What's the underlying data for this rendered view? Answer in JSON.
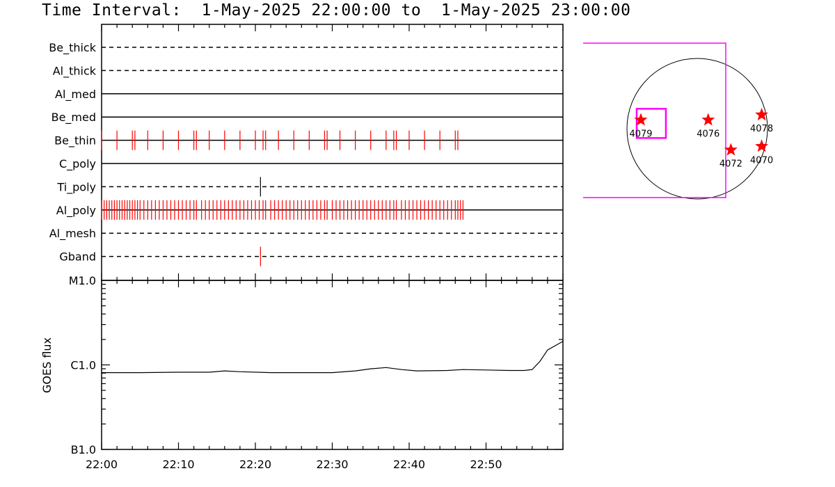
{
  "title": "Time Interval:  1-May-2025 22:00:00 to  1-May-2025 23:00:00",
  "chart_data": [
    {
      "type": "timeline",
      "rows": [
        {
          "name": "Be_thick",
          "style": "dashed",
          "events": []
        },
        {
          "name": "Al_thick",
          "style": "dashed",
          "events": []
        },
        {
          "name": "Al_med",
          "style": "solid",
          "events": []
        },
        {
          "name": "Be_med",
          "style": "solid",
          "events": []
        },
        {
          "name": "Be_thin",
          "style": "solid",
          "color": "#ff0000",
          "events": [
            "22:00:00",
            "22:02:00",
            "22:04:00",
            "22:04:20",
            "22:06:00",
            "22:08:00",
            "22:10:00",
            "22:12:00",
            "22:12:20",
            "22:14:00",
            "22:16:00",
            "22:18:00",
            "22:20:00",
            "22:21:00",
            "22:21:20",
            "22:23:00",
            "22:25:00",
            "22:27:00",
            "22:29:00",
            "22:29:20",
            "22:31:00",
            "22:33:00",
            "22:35:00",
            "22:37:00",
            "22:38:00",
            "22:38:20",
            "22:40:00",
            "22:42:00",
            "22:44:00",
            "22:46:00",
            "22:46:20"
          ]
        },
        {
          "name": "C_poly",
          "style": "solid",
          "events": []
        },
        {
          "name": "Ti_poly",
          "style": "dashed",
          "color": "#000000",
          "events": [
            "22:20:40"
          ]
        },
        {
          "name": "Al_poly",
          "style": "solid",
          "color": "#ff0000",
          "events": [
            "22:00:00",
            "22:00:20",
            "22:00:40",
            "22:01:00",
            "22:01:20",
            "22:01:40",
            "22:02:00",
            "22:02:20",
            "22:02:40",
            "22:03:00",
            "22:03:20",
            "22:03:40",
            "22:04:00",
            "22:04:20",
            "22:04:40",
            "22:05:00",
            "22:05:30",
            "22:06:00",
            "22:06:30",
            "22:07:00",
            "22:07:30",
            "22:08:00",
            "22:08:30",
            "22:09:00",
            "22:09:30",
            "22:10:00",
            "22:10:30",
            "22:11:00",
            "22:11:30",
            "22:12:00",
            "22:12:20",
            "22:13:00",
            "22:13:30",
            "22:14:00",
            "22:14:30",
            "22:15:00",
            "22:15:30",
            "22:16:00",
            "22:16:30",
            "22:17:00",
            "22:17:30",
            "22:18:00",
            "22:18:30",
            "22:19:00",
            "22:19:30",
            "22:20:00",
            "22:20:30",
            "22:21:00",
            "22:21:20",
            "22:22:00",
            "22:22:30",
            "22:23:00",
            "22:23:30",
            "22:24:00",
            "22:24:30",
            "22:25:00",
            "22:25:30",
            "22:26:00",
            "22:26:30",
            "22:27:00",
            "22:27:30",
            "22:28:00",
            "22:28:30",
            "22:29:00",
            "22:29:20",
            "22:30:00",
            "22:30:30",
            "22:31:00",
            "22:31:30",
            "22:32:00",
            "22:32:30",
            "22:33:00",
            "22:33:30",
            "22:34:00",
            "22:34:30",
            "22:35:00",
            "22:35:30",
            "22:36:00",
            "22:36:30",
            "22:37:00",
            "22:37:30",
            "22:38:00",
            "22:38:20",
            "22:39:00",
            "22:39:30",
            "22:40:00",
            "22:40:30",
            "22:41:00",
            "22:41:30",
            "22:42:00",
            "22:42:30",
            "22:43:00",
            "22:43:30",
            "22:44:00",
            "22:44:30",
            "22:45:00",
            "22:45:30",
            "22:46:00",
            "22:46:20",
            "22:46:40",
            "22:47:00"
          ]
        },
        {
          "name": "Al_mesh",
          "style": "dashed",
          "events": []
        },
        {
          "name": "Gband",
          "style": "dashed",
          "color": "#ff0000",
          "events": [
            "22:20:40"
          ]
        }
      ],
      "xlim": [
        "22:00",
        "23:00"
      ]
    },
    {
      "type": "line",
      "ylabel": "GOES flux",
      "yscale": "log",
      "ylim": [
        1e-07,
        1e-05
      ],
      "yticks": [
        {
          "value": 1e-05,
          "label": "M1.0"
        },
        {
          "value": 1e-06,
          "label": "C1.0"
        },
        {
          "value": 1e-07,
          "label": "B1.0"
        }
      ],
      "x": [
        "22:00",
        "22:05",
        "22:10",
        "22:14",
        "22:16",
        "22:18",
        "22:22",
        "22:26",
        "22:30",
        "22:33",
        "22:35",
        "22:37",
        "22:39",
        "22:41",
        "22:45",
        "22:47",
        "22:50",
        "22:53",
        "22:55",
        "22:56",
        "22:57",
        "22:58",
        "23:00"
      ],
      "values": [
        8.1e-07,
        8.1e-07,
        8.2e-07,
        8.2e-07,
        8.5e-07,
        8.3e-07,
        8.1e-07,
        8.1e-07,
        8.1e-07,
        8.5e-07,
        9e-07,
        9.3e-07,
        8.8e-07,
        8.5e-07,
        8.6e-07,
        8.8e-07,
        8.7e-07,
        8.6e-07,
        8.6e-07,
        8.8e-07,
        1.1e-06,
        1.5e-06,
        1.9e-06
      ],
      "xticks": [
        "22:00",
        "22:10",
        "22:20",
        "22:30",
        "22:40",
        "22:50"
      ]
    },
    {
      "type": "map",
      "active_regions": [
        {
          "label": "4079",
          "x": -770,
          "y": 120
        },
        {
          "label": "4076",
          "x": 150,
          "y": 120
        },
        {
          "label": "4078",
          "x": 880,
          "y": 190
        },
        {
          "label": "4072",
          "x": 460,
          "y": -290
        },
        {
          "label": "4070",
          "x": 880,
          "y": -240
        }
      ],
      "field_of_view": "pink rectangle around 4079",
      "colors": {
        "stars": "#ff0000",
        "box": "#ff00ff",
        "disk": "#000000"
      }
    }
  ]
}
